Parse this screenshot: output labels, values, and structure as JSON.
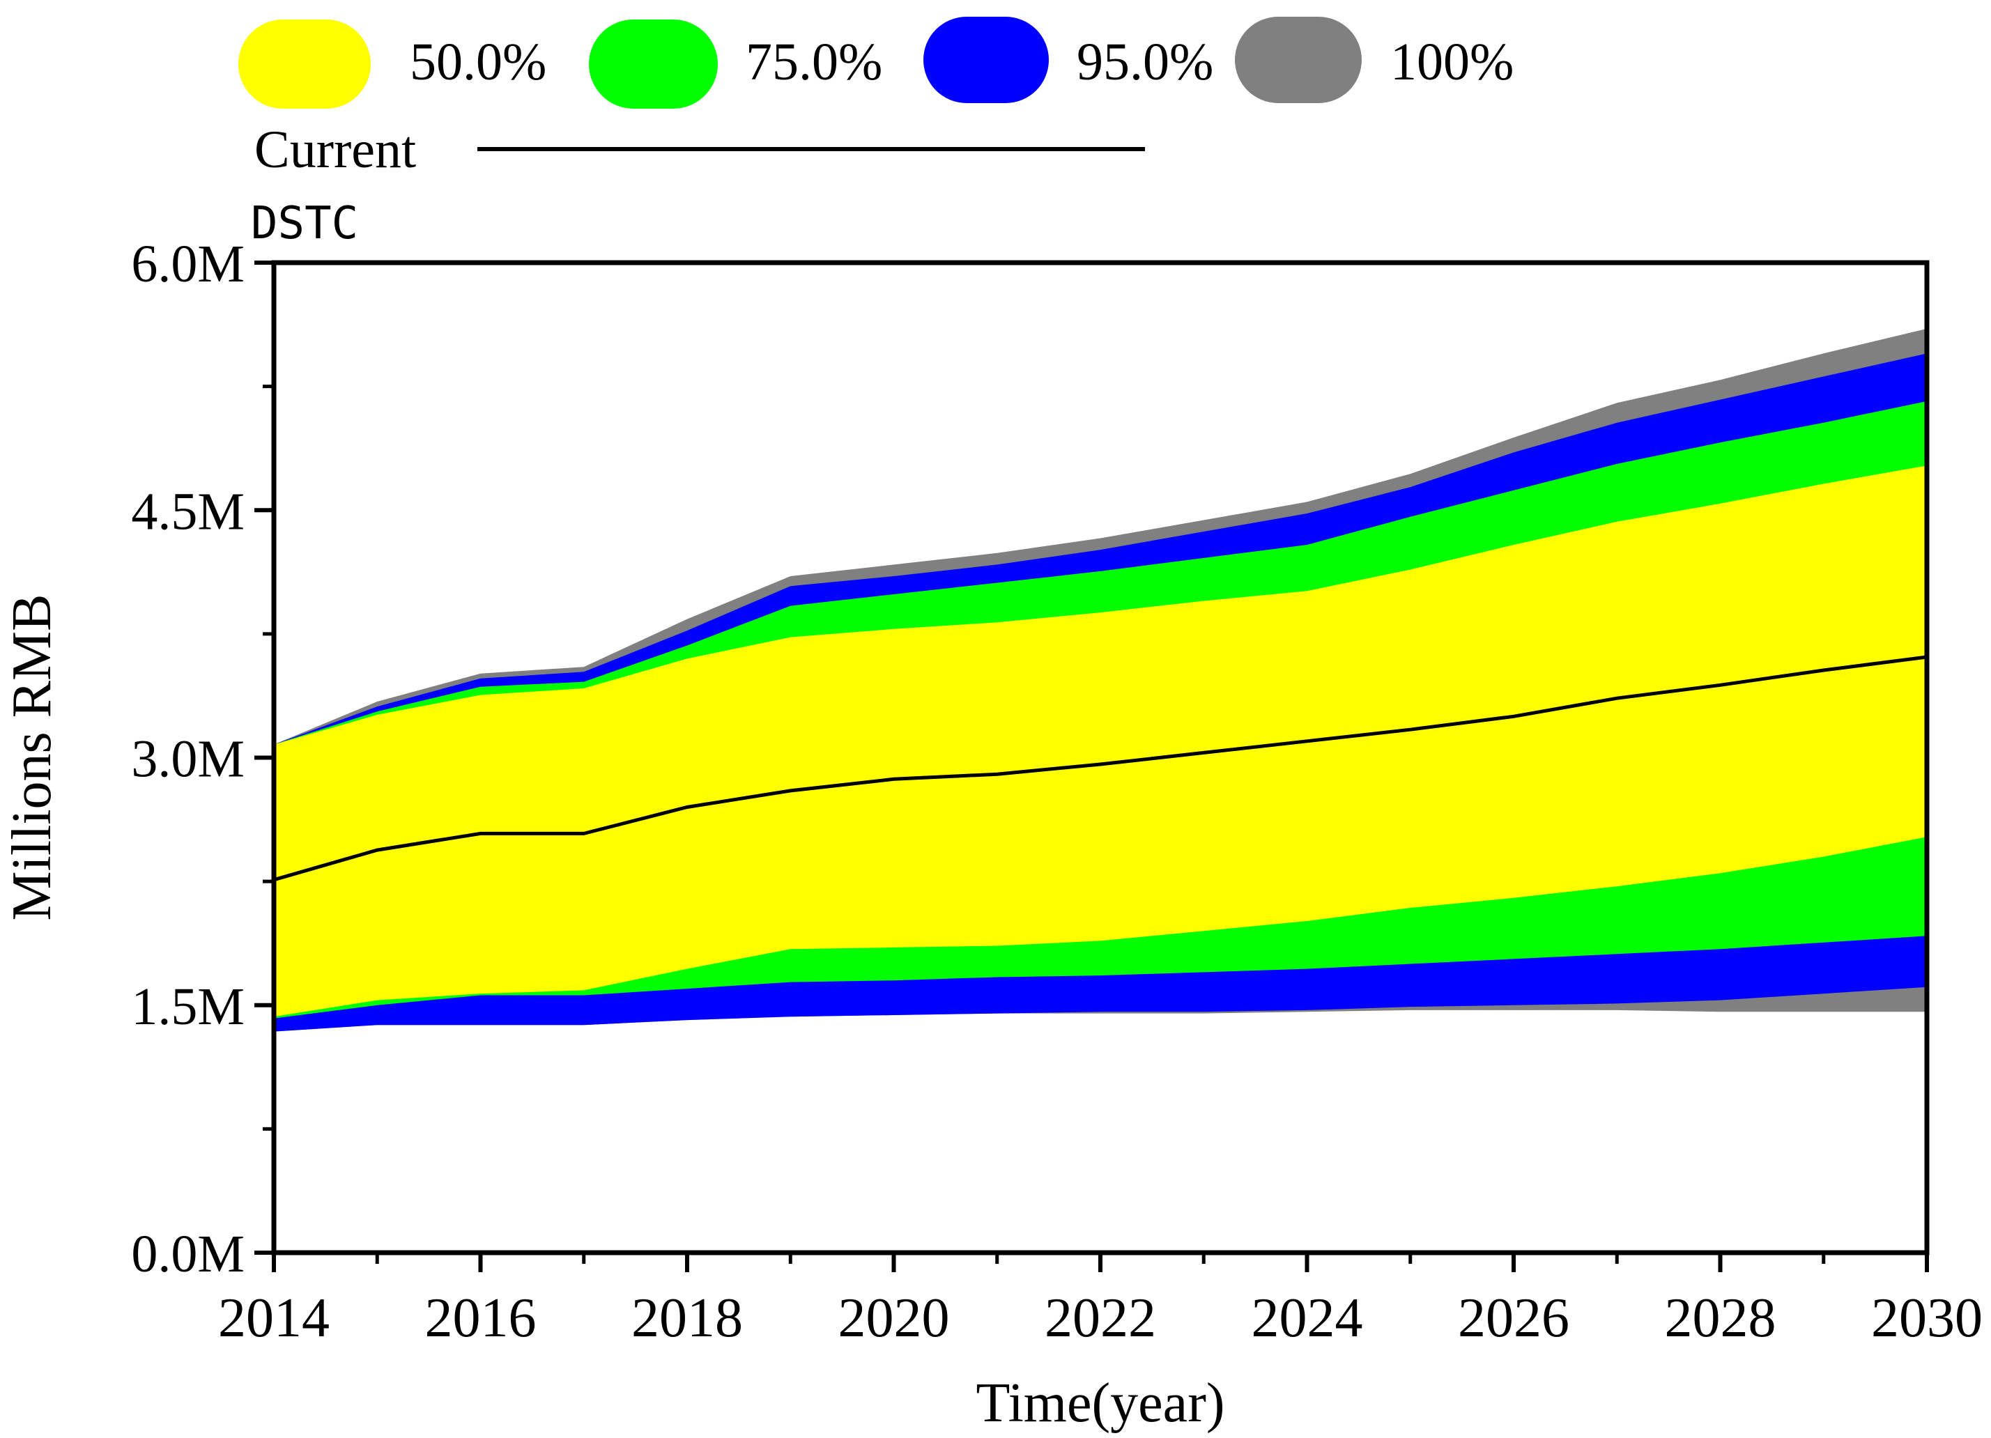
{
  "chart_data": {
    "type": "area",
    "title": "DSTC",
    "xlabel": "Time(year)",
    "ylabel": "Millions RMB",
    "xlim": [
      2014,
      2030
    ],
    "ylim": [
      0,
      6
    ],
    "x_ticks": [
      2014,
      2016,
      2018,
      2020,
      2022,
      2024,
      2026,
      2028,
      2030
    ],
    "x_tick_labels": [
      "2014",
      "2016",
      "2018",
      "2020",
      "2022",
      "2024",
      "2026",
      "2028",
      "2030"
    ],
    "y_ticks": [
      0,
      1.5,
      3,
      4.5,
      6
    ],
    "y_tick_labels": [
      "0.0M",
      "1.5M",
      "3.0M",
      "4.5M",
      "6.0M"
    ],
    "grid": false,
    "legend_position": "top",
    "x": [
      2014,
      2015,
      2016,
      2017,
      2018,
      2019,
      2020,
      2021,
      2022,
      2023,
      2024,
      2025,
      2026,
      2027,
      2028,
      2029,
      2030
    ],
    "current_line": {
      "name": "Current",
      "color": "#000000",
      "values": [
        2.26,
        2.44,
        2.54,
        2.54,
        2.7,
        2.8,
        2.87,
        2.9,
        2.96,
        3.03,
        3.1,
        3.17,
        3.25,
        3.36,
        3.44,
        3.53,
        3.61
      ]
    },
    "bands": [
      {
        "name": "100%",
        "color": "#808080",
        "upper": [
          3.08,
          3.34,
          3.51,
          3.55,
          3.84,
          4.1,
          4.17,
          4.24,
          4.33,
          4.44,
          4.55,
          4.72,
          4.94,
          5.15,
          5.29,
          5.45,
          5.6
        ],
        "lower": [
          1.34,
          1.38,
          1.38,
          1.38,
          1.41,
          1.43,
          1.44,
          1.45,
          1.45,
          1.45,
          1.46,
          1.47,
          1.47,
          1.47,
          1.46,
          1.46,
          1.46
        ]
      },
      {
        "name": "95.0%",
        "color": "#0000ff",
        "upper": [
          3.08,
          3.31,
          3.48,
          3.52,
          3.77,
          4.04,
          4.1,
          4.17,
          4.26,
          4.37,
          4.48,
          4.64,
          4.85,
          5.03,
          5.17,
          5.31,
          5.45
        ],
        "lower": [
          1.34,
          1.38,
          1.38,
          1.38,
          1.41,
          1.43,
          1.44,
          1.45,
          1.46,
          1.46,
          1.47,
          1.49,
          1.5,
          1.51,
          1.53,
          1.57,
          1.61
        ]
      },
      {
        "name": "75.0%",
        "color": "#00ff00",
        "upper": [
          3.08,
          3.28,
          3.43,
          3.46,
          3.68,
          3.92,
          3.99,
          4.06,
          4.13,
          4.21,
          4.29,
          4.46,
          4.62,
          4.78,
          4.91,
          5.03,
          5.16
        ],
        "lower": [
          1.42,
          1.5,
          1.56,
          1.56,
          1.6,
          1.64,
          1.65,
          1.67,
          1.68,
          1.7,
          1.72,
          1.75,
          1.78,
          1.81,
          1.84,
          1.88,
          1.92
        ]
      },
      {
        "name": "50.0%",
        "color": "#ffff00",
        "upper": [
          3.08,
          3.26,
          3.38,
          3.42,
          3.6,
          3.73,
          3.78,
          3.82,
          3.88,
          3.95,
          4.01,
          4.14,
          4.29,
          4.43,
          4.54,
          4.66,
          4.77
        ],
        "lower": [
          1.43,
          1.53,
          1.57,
          1.59,
          1.72,
          1.84,
          1.85,
          1.86,
          1.89,
          1.95,
          2.01,
          2.09,
          2.15,
          2.22,
          2.3,
          2.4,
          2.52
        ]
      }
    ],
    "legend": {
      "entries": [
        {
          "label": "50.0%",
          "color": "#ffff00"
        },
        {
          "label": "75.0%",
          "color": "#00ff00"
        },
        {
          "label": "95.0%",
          "color": "#0000ff"
        },
        {
          "label": "100%",
          "color": "#808080"
        }
      ],
      "line_label": "Current"
    }
  }
}
